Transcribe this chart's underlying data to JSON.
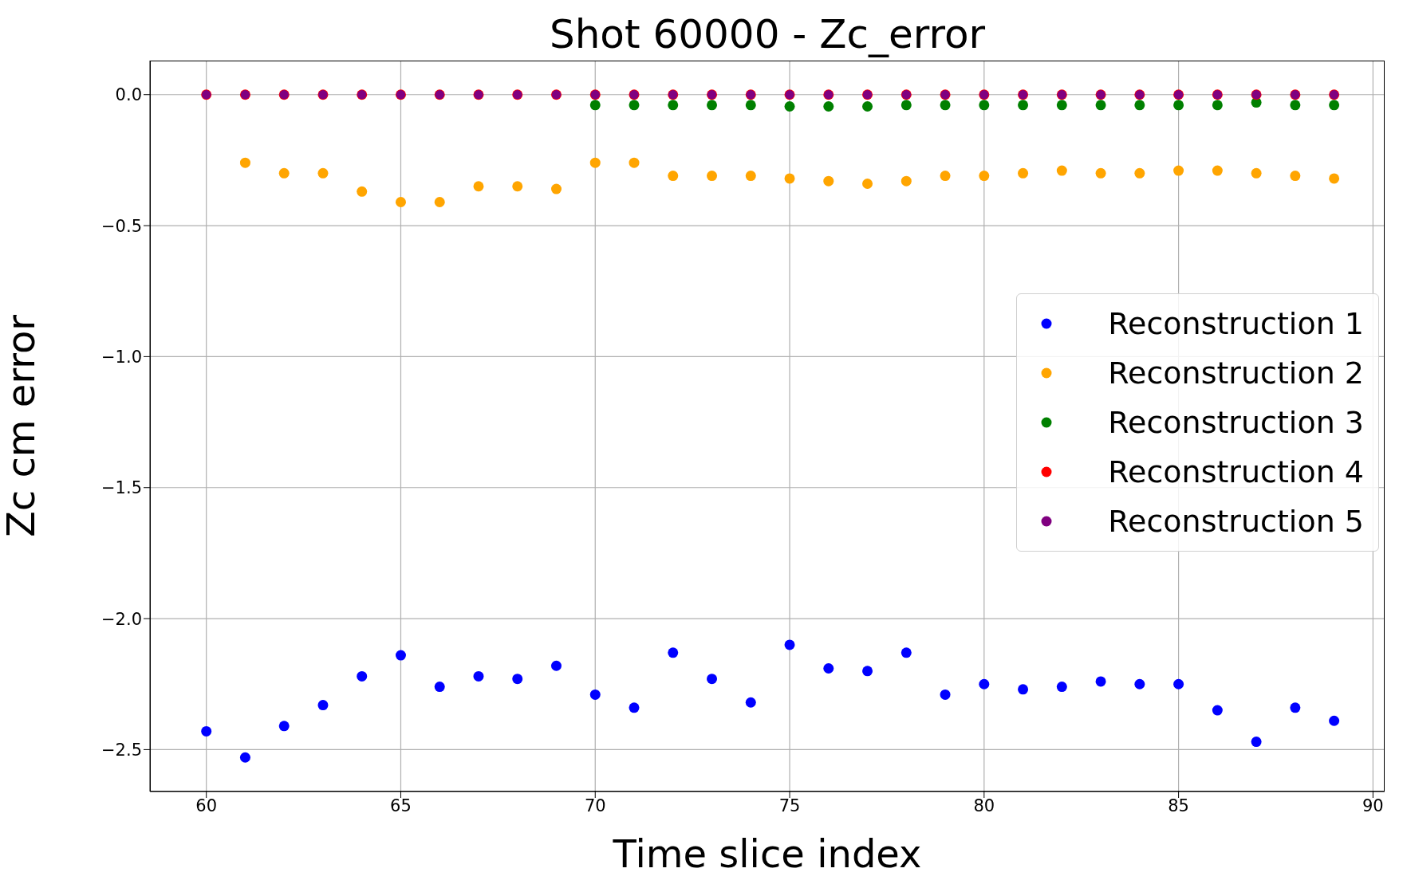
{
  "chart_data": {
    "type": "scatter",
    "title": "Shot 60000 - Zc_error",
    "xlabel": "Time slice index",
    "ylabel": "Zc cm error",
    "x": [
      60,
      61,
      62,
      63,
      64,
      65,
      66,
      67,
      68,
      69,
      70,
      71,
      72,
      73,
      74,
      75,
      76,
      77,
      78,
      79,
      80,
      81,
      82,
      83,
      84,
      85,
      86,
      87,
      88,
      89
    ],
    "series": [
      {
        "name": "Reconstruction 1",
        "color": "#0000ff",
        "values": [
          -2.43,
          -2.53,
          -2.41,
          -2.33,
          -2.22,
          -2.14,
          -2.26,
          -2.22,
          -2.23,
          -2.18,
          -2.29,
          -2.34,
          -2.13,
          -2.23,
          -2.32,
          -2.1,
          -2.19,
          -2.2,
          -2.13,
          -2.29,
          -2.25,
          -2.27,
          -2.26,
          -2.24,
          -2.25,
          -2.25,
          -2.35,
          -2.47,
          -2.34,
          -2.39
        ]
      },
      {
        "name": "Reconstruction 2",
        "color": "#ffa500",
        "values": [
          null,
          -0.26,
          -0.3,
          -0.3,
          -0.37,
          -0.41,
          -0.41,
          -0.35,
          -0.35,
          -0.36,
          -0.26,
          -0.26,
          -0.31,
          -0.31,
          -0.31,
          -0.32,
          -0.33,
          -0.34,
          -0.33,
          -0.31,
          -0.31,
          -0.3,
          -0.29,
          -0.3,
          -0.3,
          -0.29,
          -0.29,
          -0.3,
          -0.31,
          -0.32
        ]
      },
      {
        "name": "Reconstruction 3",
        "color": "#008000",
        "values": [
          null,
          null,
          null,
          null,
          null,
          null,
          null,
          null,
          null,
          null,
          -0.04,
          -0.04,
          -0.04,
          -0.04,
          -0.04,
          -0.045,
          -0.045,
          -0.045,
          -0.04,
          -0.04,
          -0.04,
          -0.04,
          -0.04,
          -0.04,
          -0.04,
          -0.04,
          -0.04,
          -0.03,
          -0.04,
          -0.04
        ]
      },
      {
        "name": "Reconstruction 4",
        "color": "#ff0000",
        "values": [
          0,
          0,
          0,
          0,
          0,
          0,
          0,
          0,
          0,
          0,
          0,
          0,
          0,
          0,
          0,
          0,
          0,
          0,
          0,
          0,
          0,
          0,
          0,
          0,
          0,
          0,
          0,
          0,
          0,
          0
        ]
      },
      {
        "name": "Reconstruction 5",
        "color": "#800080",
        "values": [
          0,
          0,
          0,
          0,
          0,
          0,
          0,
          0,
          0,
          0,
          0,
          0,
          0,
          0,
          0,
          0,
          0,
          0,
          0,
          0,
          0,
          0,
          0,
          0,
          0,
          0,
          0,
          0,
          0,
          0
        ]
      }
    ],
    "xlim": [
      58.55,
      90.3
    ],
    "xticks": [
      60,
      65,
      70,
      75,
      80,
      85,
      90
    ],
    "ylim": [
      -2.66,
      0.13
    ],
    "yticks": [
      {
        "value": 0,
        "label": "0.0"
      },
      {
        "value": -0.5,
        "label": "−0.5"
      },
      {
        "value": -1,
        "label": "−1.0"
      },
      {
        "value": -1.5,
        "label": "−1.5"
      },
      {
        "value": -2,
        "label": "−2.0"
      },
      {
        "value": -2.5,
        "label": "−2.5"
      }
    ],
    "grid": true,
    "legend": "right",
    "marker": "circle"
  }
}
